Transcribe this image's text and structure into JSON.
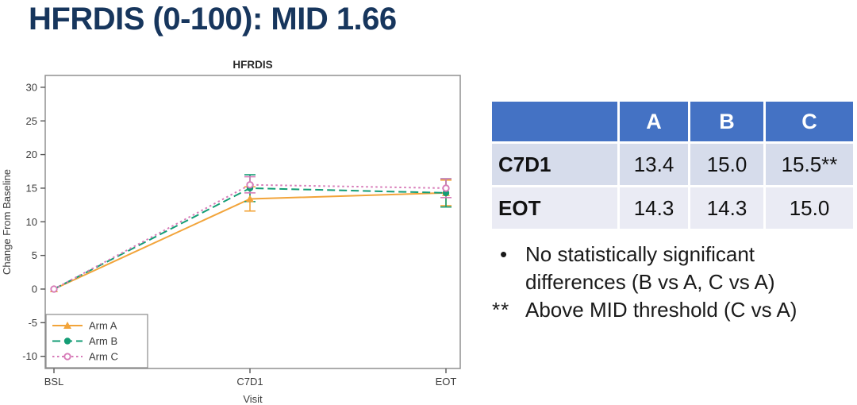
{
  "slide": {
    "title": "HFRDIS (0-100): MID 1.66"
  },
  "chart_data": {
    "type": "line",
    "title": "HFRDIS",
    "xlabel": "Visit",
    "ylabel": "Change From Baseline",
    "categories": [
      "BSL",
      "C7D1",
      "EOT"
    ],
    "ylim": [
      -10,
      30
    ],
    "ytick_step": 5,
    "grid": false,
    "legend_position": "bottom-left",
    "series": [
      {
        "name": "Arm A",
        "color": "#F2A43A",
        "marker": "triangle",
        "dash": "solid",
        "values": [
          0,
          13.4,
          14.3
        ],
        "errors": [
          0,
          1.8,
          1.9
        ]
      },
      {
        "name": "Arm B",
        "color": "#149D75",
        "marker": "circle",
        "dash": "dashed",
        "values": [
          0,
          15.0,
          14.3
        ],
        "errors": [
          0,
          2.0,
          2.1
        ]
      },
      {
        "name": "Arm C",
        "color": "#D77BB8",
        "marker": "open-circle",
        "dash": "dotted",
        "values": [
          0,
          15.5,
          15.0
        ],
        "errors": [
          0,
          1.2,
          1.4
        ]
      }
    ]
  },
  "table": {
    "corner": "",
    "columns": [
      "A",
      "B",
      "C"
    ],
    "rows": [
      {
        "label": "C7D1",
        "values": [
          "13.4",
          "15.0",
          "15.5**"
        ]
      },
      {
        "label": "EOT",
        "values": [
          "14.3",
          "14.3",
          "15.0"
        ]
      }
    ]
  },
  "notes": {
    "bullet_marker": "•",
    "bullet_text": "No statistically significant differences (B vs A, C vs A)",
    "footnote_marker": "**",
    "footnote_text": "Above MID threshold (C vs A)"
  },
  "colors": {
    "title_navy": "#17365D",
    "table_header_bg": "#4472C4",
    "table_band1_bg": "#D6DCEB",
    "table_band2_bg": "#EAEBF4"
  }
}
